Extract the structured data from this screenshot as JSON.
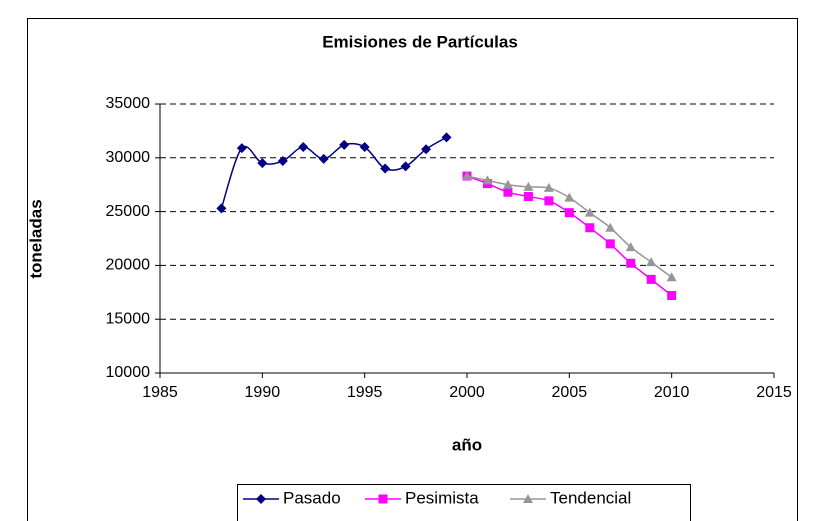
{
  "chart_data": {
    "type": "line",
    "title": "Emisiones de Partículas",
    "x_label": "año",
    "y_label": "toneladas",
    "xlim": [
      1985,
      2015
    ],
    "xticks": [
      1985,
      1990,
      1995,
      2000,
      2005,
      2010,
      2015
    ],
    "ylim": [
      10000,
      35000
    ],
    "yticks": [
      10000,
      15000,
      20000,
      25000,
      30000,
      35000
    ],
    "grid": true,
    "smooth": true,
    "legend": "bottom",
    "series": [
      {
        "name": "Pasado",
        "color": "#000080",
        "marker": "diamond",
        "x": [
          1988,
          1989,
          1990,
          1991,
          1992,
          1993,
          1994,
          1995,
          1996,
          1997,
          1998,
          1999
        ],
        "values": [
          25300,
          30900,
          29500,
          29700,
          31000,
          29900,
          31200,
          31000,
          29000,
          29200,
          30800,
          31900
        ]
      },
      {
        "name": "Pesimista",
        "color": "#ff00ff",
        "marker": "square",
        "x": [
          2000,
          2001,
          2002,
          2003,
          2004,
          2005,
          2006,
          2007,
          2008,
          2009,
          2010
        ],
        "values": [
          28300,
          27600,
          26800,
          26400,
          26000,
          24900,
          23500,
          22000,
          20200,
          18700,
          17200
        ]
      },
      {
        "name": "Tendencial",
        "color": "#969696",
        "marker": "triangle",
        "x": [
          2000,
          2001,
          2002,
          2003,
          2004,
          2005,
          2006,
          2007,
          2008,
          2009,
          2010
        ],
        "values": [
          28300,
          27900,
          27500,
          27300,
          27200,
          26300,
          24900,
          23500,
          21700,
          20300,
          18900
        ]
      }
    ]
  }
}
